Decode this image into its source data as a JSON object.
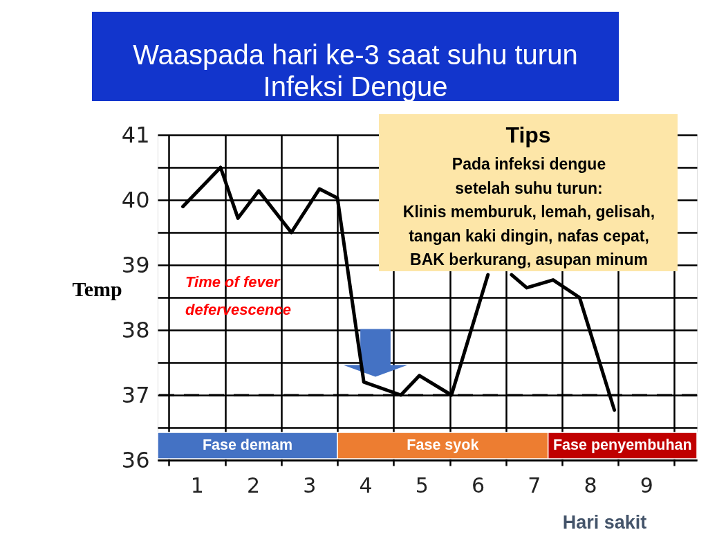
{
  "chart_data": {
    "type": "line",
    "title": "Waaspada hari ke-3 saat suhu turun\nInfeksi Dengue",
    "xlabel": "Hari sakit",
    "ylabel": "Temp",
    "x": [
      0.75,
      1.42,
      1.73,
      2.1,
      2.68,
      3.18,
      3.5,
      3.97,
      4.63,
      4.96,
      5.53,
      6.18,
      6.4,
      6.6,
      6.87,
      7.34,
      7.81,
      8.43
    ],
    "series": [
      {
        "color": "#000000",
        "values": [
          39.9,
          40.5,
          39.72,
          40.14,
          39.5,
          40.17,
          40.03,
          37.2,
          37.0,
          37.3,
          37.0,
          38.85,
          null,
          38.85,
          38.65,
          38.77,
          38.5,
          36.77
        ]
      }
    ],
    "xlim": [
      0.3,
      9.9
    ],
    "xticks": [
      {
        "value": 0.5,
        "label": null
      },
      1,
      {
        "value": 1.5,
        "label": null
      },
      2,
      {
        "value": 2.5,
        "label": null
      },
      3,
      {
        "value": 3.5,
        "label": null
      },
      4,
      {
        "value": 4.5,
        "label": null
      },
      5,
      {
        "value": 5.5,
        "label": null
      },
      6,
      {
        "value": 6.5,
        "label": null
      },
      7,
      {
        "value": 7.5,
        "label": null
      },
      8,
      {
        "value": 8.5,
        "label": null
      },
      9,
      {
        "value": 9.5,
        "label": null
      }
    ],
    "ylim": [
      36,
      41
    ],
    "yticks": [
      36,
      {
        "value": 36.5,
        "label": null
      },
      37,
      {
        "value": 37.5,
        "label": null
      },
      38,
      {
        "value": 38.5,
        "label": null
      },
      39,
      {
        "value": 39.5,
        "label": null
      },
      40,
      {
        "value": 40.5,
        "label": null
      },
      41
    ],
    "grid": true,
    "ref_lines": [
      {
        "axis": "y",
        "value": 37,
        "color": "#000000",
        "line_style": "dashed"
      }
    ],
    "bands": [
      {
        "axis": "x",
        "from": 0.3,
        "to": 3.5,
        "label": "Fase demam",
        "color": "#4472c4"
      },
      {
        "axis": "x",
        "from": 3.5,
        "to": 7.25,
        "label": "Fase syok",
        "color": "#ed7d31"
      },
      {
        "axis": "x",
        "from": 7.25,
        "to": 9.9,
        "label": "Fase penyembuhan",
        "color": "#c00000"
      }
    ],
    "annotations": [
      "Time of fever\ndefervescence",
      "Tips",
      "Pada infeksi dengue\nsetelah suhu turun:\nKlinis memburuk, lemah, gelisah,\ntangan kaki dingin, nafas cepat,\nBAK berkurang, asupan minum"
    ]
  }
}
